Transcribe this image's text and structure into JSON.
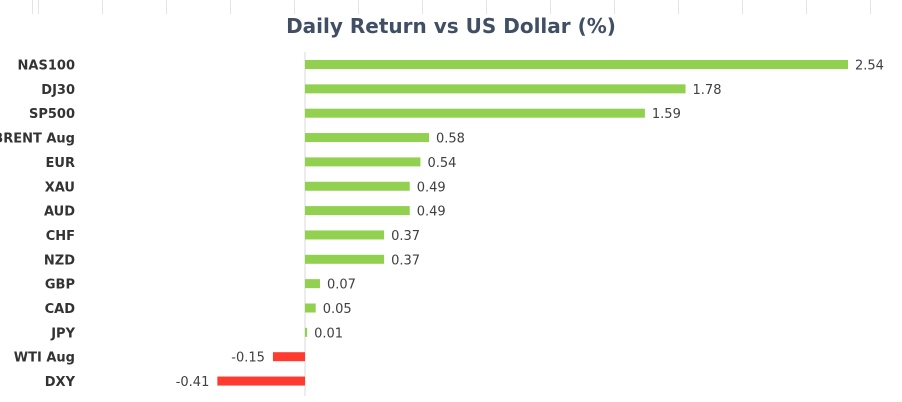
{
  "chart_data": {
    "type": "bar",
    "orientation": "horizontal",
    "title": "Daily Return vs US Dollar (%)",
    "categories": [
      "NAS100",
      "DJ30",
      "SP500",
      "BRENT Aug",
      "EUR",
      "XAU",
      "AUD",
      "CHF",
      "NZD",
      "GBP",
      "CAD",
      "JPY",
      "WTI Aug",
      "DXY"
    ],
    "values": [
      2.54,
      1.78,
      1.59,
      0.58,
      0.54,
      0.49,
      0.49,
      0.37,
      0.37,
      0.07,
      0.05,
      0.01,
      -0.15,
      -0.41
    ],
    "value_labels": [
      "2.54",
      "1.78",
      "1.59",
      "0.58",
      "0.54",
      "0.49",
      "0.49",
      "0.37",
      "0.37",
      "0.07",
      "0.05",
      "0.01",
      "-0.15",
      "-0.41"
    ],
    "xlabel": "",
    "ylabel": "",
    "xlim": [
      -0.41,
      2.54
    ],
    "grid": false,
    "legend": "none",
    "colors": {
      "positive": "#92d050",
      "negative": "#ff3b30",
      "axis": "#d9d9d9",
      "title": "#404f63"
    }
  }
}
